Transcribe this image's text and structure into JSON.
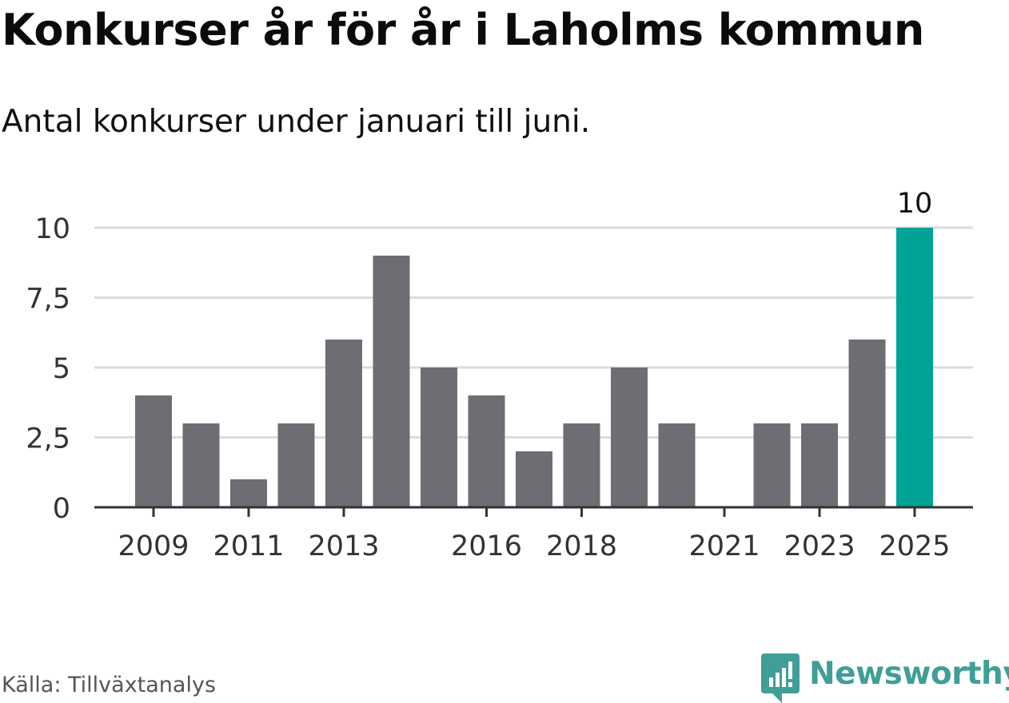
{
  "chart_data": {
    "type": "bar",
    "title": "Konkurser år för år i Laholms kommun",
    "subtitle": "Antal konkurser under januari till juni.",
    "categories": [
      "2009",
      "2010",
      "2011",
      "2012",
      "2013",
      "2014",
      "2015",
      "2016",
      "2017",
      "2018",
      "2019",
      "2020",
      "2021",
      "2022",
      "2023",
      "2024",
      "2025"
    ],
    "values": [
      4,
      3,
      1,
      3,
      6,
      9,
      5,
      4,
      2,
      3,
      5,
      3,
      0,
      3,
      3,
      6,
      10
    ],
    "x_tick_labels": [
      "2009",
      "2011",
      "2013",
      "2016",
      "2018",
      "2021",
      "2023",
      "2025"
    ],
    "y_ticks": [
      0,
      2.5,
      5,
      7.5,
      10
    ],
    "y_tick_labels": [
      "0",
      "2,5",
      "5",
      "7,5",
      "10"
    ],
    "ylim": [
      0,
      10
    ],
    "xlabel": "",
    "ylabel": "",
    "grid": true,
    "highlight": {
      "category": "2025",
      "label": "10"
    },
    "colors": {
      "bar": "#6e6d73",
      "highlight": "#00a396",
      "grid": "#dcdcdc",
      "axis": "#333333"
    }
  },
  "source": "Källa: Tillväxtanalys",
  "brand": {
    "name": "Newsworthy",
    "icon": "newsworthy-logo-icon",
    "color": "#3f9e98"
  }
}
